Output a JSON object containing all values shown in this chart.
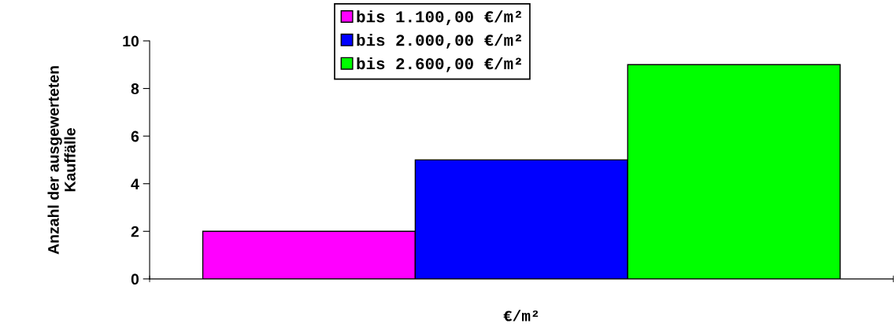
{
  "chart_data": {
    "type": "bar",
    "categories": [
      null
    ],
    "xlabel": "€/m²",
    "ylabel": "Anzahl der ausgewerteten\nKauffälle",
    "series": [
      {
        "name": "bis 1.100,00 €/m²",
        "color": "#ff00ff",
        "values": [
          2
        ]
      },
      {
        "name": "bis 2.000,00 €/m²",
        "color": "#0000ff",
        "values": [
          5
        ]
      },
      {
        "name": "bis 2.600,00 €/m²",
        "color": "#00ff00",
        "values": [
          9
        ]
      }
    ],
    "ylim": [
      0,
      10
    ],
    "yticks": [
      0,
      2,
      4,
      6,
      8,
      10
    ],
    "grid": false,
    "legend": "top"
  }
}
